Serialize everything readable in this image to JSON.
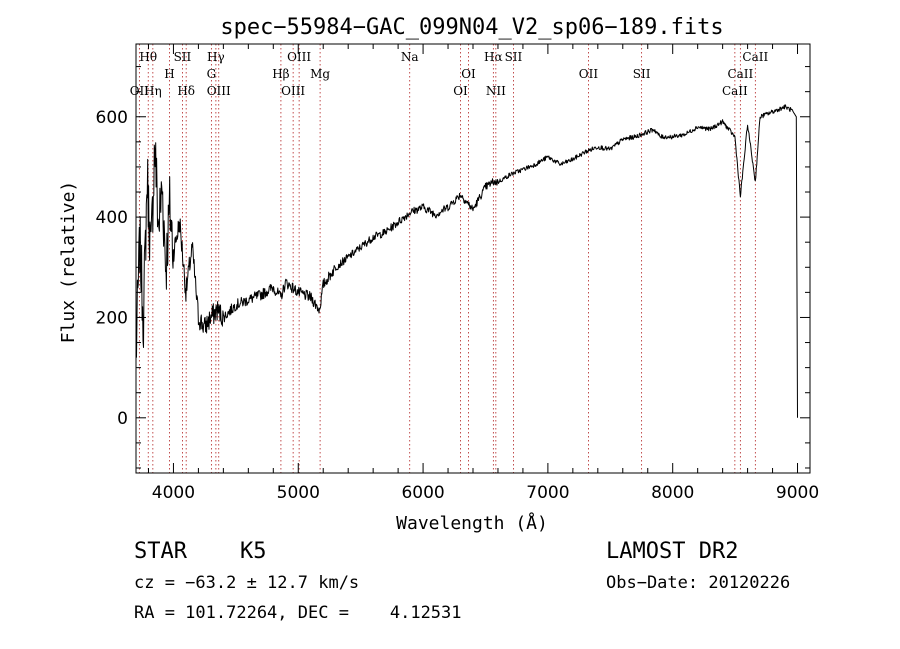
{
  "chart_data": {
    "type": "line",
    "title": "spec−55984−GAC_099N04_V2_sp06−189.fits",
    "xlabel": "Wavelength (Å)",
    "ylabel": "Flux (relative)",
    "xlim": [
      3700,
      9100
    ],
    "ylim": [
      -110,
      745
    ],
    "xticks": [
      4000,
      5000,
      6000,
      7000,
      8000,
      9000
    ],
    "yticks": [
      0,
      200,
      400,
      600
    ],
    "xtick_labels": [
      "4000",
      "5000",
      "6000",
      "7000",
      "8000",
      "9000"
    ],
    "ytick_labels": [
      "0",
      "200",
      "400",
      "600"
    ],
    "line_color": "#000000",
    "marker_color": "#b22222",
    "series": [
      {
        "x": [
          3700,
          3730,
          3760,
          3790,
          3820,
          3850,
          3880,
          3910,
          3940,
          3970,
          4000,
          4050,
          4100,
          4150,
          4200,
          4250,
          4300,
          4350,
          4400,
          4500,
          4600,
          4700,
          4800,
          4860,
          4900,
          5000,
          5100,
          5170,
          5200,
          5300,
          5400,
          5500,
          5600,
          5700,
          5800,
          5900,
          6000,
          6100,
          6200,
          6300,
          6400,
          6500,
          6560,
          6600,
          6700,
          6800,
          6900,
          7000,
          7100,
          7200,
          7300,
          7400,
          7500,
          7600,
          7700,
          7800,
          7850,
          7900,
          8000,
          8100,
          8200,
          8300,
          8400,
          8498,
          8542,
          8600,
          8662,
          8700,
          8800,
          8900,
          8960,
          8990,
          9000
        ],
        "y": [
          120,
          350,
          200,
          480,
          320,
          550,
          380,
          460,
          300,
          420,
          330,
          390,
          250,
          340,
          200,
          180,
          200,
          215,
          200,
          225,
          235,
          245,
          260,
          240,
          270,
          250,
          240,
          215,
          265,
          300,
          320,
          340,
          360,
          370,
          390,
          410,
          420,
          405,
          420,
          445,
          415,
          460,
          470,
          470,
          485,
          495,
          505,
          520,
          505,
          515,
          530,
          540,
          535,
          555,
          560,
          570,
          575,
          560,
          560,
          565,
          580,
          575,
          590,
          560,
          440,
          585,
          470,
          600,
          610,
          620,
          612,
          600,
          0
        ]
      }
    ],
    "lines": [
      {
        "label": "Hθ",
        "x": 3798,
        "row": 1
      },
      {
        "label": "OII",
        "x": 3727,
        "row": 3
      },
      {
        "label": "Hη",
        "x": 3835,
        "row": 3
      },
      {
        "label": "H",
        "x": 3968,
        "row": 2
      },
      {
        "label": "SII",
        "x": 4072,
        "row": 1
      },
      {
        "label": "Hδ",
        "x": 4102,
        "row": 3
      },
      {
        "label": "Hγ",
        "x": 4340,
        "row": 1
      },
      {
        "label": "G",
        "x": 4304,
        "row": 2
      },
      {
        "label": "OIII",
        "x": 4363,
        "row": 3
      },
      {
        "label": "OIII",
        "x": 5007,
        "row": 1
      },
      {
        "label": "Hβ",
        "x": 4861,
        "row": 2
      },
      {
        "label": "OIII",
        "x": 4959,
        "row": 3
      },
      {
        "label": "Mg",
        "x": 5175,
        "row": 2
      },
      {
        "label": "Na",
        "x": 5893,
        "row": 1
      },
      {
        "label": "OI",
        "x": 6364,
        "row": 2
      },
      {
        "label": "OI",
        "x": 6300,
        "row": 3
      },
      {
        "label": "Hα",
        "x": 6563,
        "row": 1
      },
      {
        "label": "SII",
        "x": 6724,
        "row": 1
      },
      {
        "label": "NII",
        "x": 6583,
        "row": 3
      },
      {
        "label": "OII",
        "x": 7325,
        "row": 2
      },
      {
        "label": "SII",
        "x": 7751,
        "row": 2
      },
      {
        "label": "CaII",
        "x": 8662,
        "row": 1
      },
      {
        "label": "CaII",
        "x": 8542,
        "row": 2
      },
      {
        "label": "CaII",
        "x": 8498,
        "row": 3
      }
    ]
  },
  "info": {
    "object_class": "STAR",
    "subclass": "K5",
    "survey": "LAMOST DR2",
    "cz": "cz = −63.2 ± 12.7 km/s",
    "obs_date": "Obs−Date: 20120226",
    "coords": "RA = 101.72264, DEC =    4.12531"
  }
}
